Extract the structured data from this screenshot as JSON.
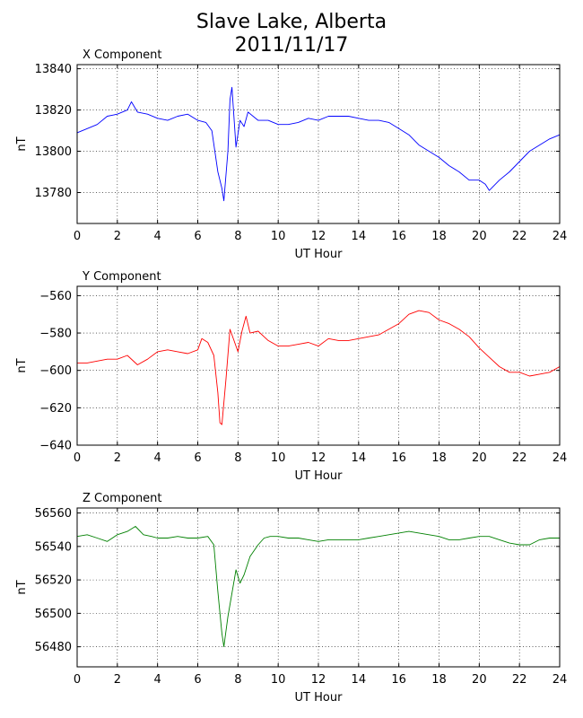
{
  "figure": {
    "title_line1": "Slave Lake, Alberta",
    "title_line2": "2011/11/17"
  },
  "chart_data": [
    {
      "type": "line",
      "panel_title": "X Component",
      "xlabel": "UT Hour",
      "ylabel": "nT",
      "xlim": [
        0,
        24
      ],
      "ylim": [
        13765,
        13842
      ],
      "xticks": [
        0,
        2,
        4,
        6,
        8,
        10,
        12,
        14,
        16,
        18,
        20,
        22,
        24
      ],
      "yticks": [
        13780,
        13800,
        13820,
        13840
      ],
      "grid": true,
      "color": "#0000ff",
      "x": [
        0,
        0.5,
        1,
        1.5,
        2,
        2.5,
        2.7,
        3,
        3.5,
        4,
        4.5,
        5,
        5.5,
        6,
        6.4,
        6.7,
        7.0,
        7.2,
        7.3,
        7.5,
        7.6,
        7.7,
        7.9,
        8.1,
        8.3,
        8.5,
        9,
        9.5,
        10,
        10.5,
        11,
        11.5,
        12,
        12.5,
        13,
        13.5,
        14,
        14.5,
        15,
        15.5,
        16,
        16.5,
        17,
        17.5,
        18,
        18.5,
        19,
        19.5,
        20,
        20.3,
        20.5,
        21,
        21.5,
        22,
        22.5,
        23,
        23.5,
        24
      ],
      "y": [
        13809,
        13811,
        13813,
        13817,
        13818,
        13820,
        13824,
        13819,
        13818,
        13816,
        13815,
        13817,
        13818,
        13815,
        13814,
        13810,
        13790,
        13782,
        13776,
        13800,
        13825,
        13831,
        13802,
        13815,
        13812,
        13819,
        13815,
        13815,
        13813,
        13813,
        13814,
        13816,
        13815,
        13817,
        13817,
        13817,
        13816,
        13815,
        13815,
        13814,
        13811,
        13808,
        13803,
        13800,
        13797,
        13793,
        13790,
        13786,
        13786,
        13784,
        13781,
        13786,
        13790,
        13795,
        13800,
        13803,
        13806,
        13808
      ]
    },
    {
      "type": "line",
      "panel_title": "Y Component",
      "xlabel": "UT Hour",
      "ylabel": "nT",
      "xlim": [
        0,
        24
      ],
      "ylim": [
        -640,
        -555
      ],
      "xticks": [
        0,
        2,
        4,
        6,
        8,
        10,
        12,
        14,
        16,
        18,
        20,
        22,
        24
      ],
      "yticks": [
        -560,
        -580,
        -600,
        -620,
        -640
      ],
      "grid": true,
      "color": "#ff0000",
      "x": [
        0,
        0.5,
        1,
        1.5,
        2,
        2.5,
        3,
        3.5,
        4,
        4.5,
        5,
        5.5,
        6,
        6.2,
        6.5,
        6.8,
        7.0,
        7.1,
        7.2,
        7.4,
        7.6,
        7.8,
        8.0,
        8.2,
        8.4,
        8.6,
        9,
        9.5,
        10,
        10.5,
        11,
        11.5,
        12,
        12.5,
        13,
        13.5,
        14,
        14.5,
        15,
        15.5,
        16,
        16.5,
        17,
        17.5,
        18,
        18.5,
        19,
        19.5,
        20,
        20.5,
        21,
        21.5,
        22,
        22.5,
        23,
        23.5,
        24
      ],
      "y": [
        -596,
        -596,
        -595,
        -594,
        -594,
        -592,
        -597,
        -594,
        -590,
        -589,
        -590,
        -591,
        -589,
        -583,
        -585,
        -592,
        -612,
        -628,
        -629,
        -605,
        -578,
        -584,
        -590,
        -579,
        -571,
        -580,
        -579,
        -584,
        -587,
        -587,
        -586,
        -585,
        -587,
        -583,
        -584,
        -584,
        -583,
        -582,
        -581,
        -578,
        -575,
        -570,
        -568,
        -569,
        -573,
        -575,
        -578,
        -582,
        -588,
        -593,
        -598,
        -601,
        -601,
        -603,
        -602,
        -601,
        -598
      ]
    },
    {
      "type": "line",
      "panel_title": "Z Component",
      "xlabel": "UT Hour",
      "ylabel": "nT",
      "xlim": [
        0,
        24
      ],
      "ylim": [
        56468,
        56563
      ],
      "xticks": [
        0,
        2,
        4,
        6,
        8,
        10,
        12,
        14,
        16,
        18,
        20,
        22,
        24
      ],
      "yticks": [
        56560,
        56540,
        56520,
        56500,
        56480
      ],
      "grid": true,
      "color": "#008000",
      "x": [
        0,
        0.5,
        1,
        1.5,
        2,
        2.5,
        2.9,
        3.3,
        3.7,
        4,
        4.5,
        5,
        5.5,
        6,
        6.5,
        6.8,
        7.0,
        7.2,
        7.3,
        7.5,
        7.7,
        7.9,
        8.1,
        8.3,
        8.6,
        9,
        9.3,
        9.6,
        10,
        10.5,
        11,
        11.5,
        12,
        12.5,
        13,
        13.5,
        14,
        14.5,
        15,
        15.5,
        16,
        16.5,
        17,
        17.5,
        18,
        18.5,
        19,
        19.5,
        20,
        20.5,
        21,
        21.5,
        22,
        22.5,
        23,
        23.5,
        24
      ],
      "y": [
        56546,
        56547,
        56545,
        56543,
        56547,
        56549,
        56552,
        56547,
        56546,
        56545,
        56545,
        56546,
        56545,
        56545,
        56546,
        56541,
        56513,
        56488,
        56480,
        56498,
        56512,
        56526,
        56518,
        56523,
        56534,
        56541,
        56545,
        56546,
        56546,
        56545,
        56545,
        56544,
        56543,
        56544,
        56544,
        56544,
        56544,
        56545,
        56546,
        56547,
        56548,
        56549,
        56548,
        56547,
        56546,
        56544,
        56544,
        56545,
        56546,
        56546,
        56544,
        56542,
        56541,
        56541,
        56544,
        56545,
        56545
      ]
    }
  ]
}
